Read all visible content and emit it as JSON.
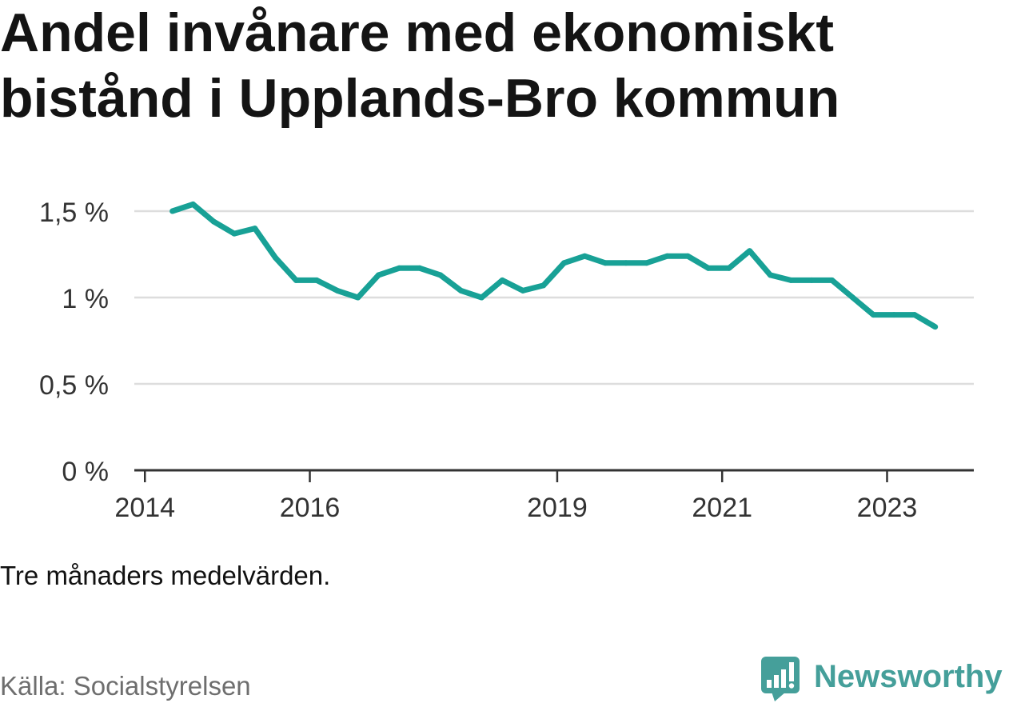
{
  "chart_data": {
    "type": "line",
    "title": "Andel invånare med ekonomiskt bistånd i Upplands-Bro kommun",
    "x": [
      "2014-05",
      "2014-08",
      "2014-11",
      "2015-02",
      "2015-05",
      "2015-08",
      "2015-11",
      "2016-02",
      "2016-05",
      "2016-08",
      "2016-11",
      "2017-02",
      "2017-05",
      "2017-08",
      "2017-11",
      "2018-02",
      "2018-05",
      "2018-08",
      "2018-11",
      "2019-02",
      "2019-05",
      "2019-08",
      "2019-11",
      "2020-02",
      "2020-05",
      "2020-08",
      "2020-11",
      "2021-02",
      "2021-05",
      "2021-08",
      "2021-11",
      "2022-02",
      "2022-05",
      "2022-08",
      "2022-11",
      "2023-02",
      "2023-05",
      "2023-08"
    ],
    "series": [
      {
        "values": [
          1.5,
          1.54,
          1.44,
          1.37,
          1.4,
          1.23,
          1.1,
          1.1,
          1.04,
          1.0,
          1.13,
          1.17,
          1.17,
          1.13,
          1.04,
          1.0,
          1.1,
          1.04,
          1.07,
          1.2,
          1.24,
          1.2,
          1.2,
          1.2,
          1.24,
          1.24,
          1.17,
          1.17,
          1.27,
          1.13,
          1.1,
          1.1,
          1.1,
          1.0,
          0.9,
          0.9,
          0.9,
          0.83
        ],
        "color": "#18a196"
      }
    ],
    "xlim": [
      "2013-11-15",
      "2024-01-20"
    ],
    "ylim": [
      0,
      1.5
    ],
    "y_ticks": [
      0,
      0.5,
      1,
      1.5
    ],
    "y_tick_labels": [
      "0 %",
      "0,5 %",
      "1 %",
      "1,5 %"
    ],
    "x_ticks": [
      "2014",
      "2016",
      "2019",
      "2021",
      "2023"
    ],
    "grid": {
      "y": true,
      "x": false
    }
  },
  "note": "Tre månaders medelvärden.",
  "source": "Källa: Socialstyrelsen",
  "logo": {
    "text": "Newsworthy",
    "icon": "newsworthy-logo-icon",
    "color": "#459f9a"
  }
}
